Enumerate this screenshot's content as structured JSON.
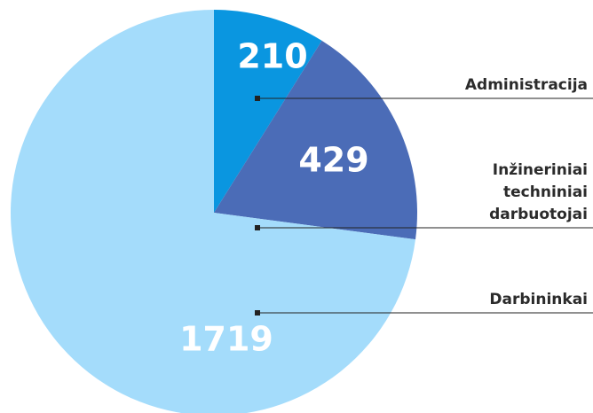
{
  "chart_data": {
    "type": "pie",
    "categories": [
      "Administracija",
      "Inžineriniai techniniai darbuotojai",
      "Darbininkai"
    ],
    "values": [
      210,
      429,
      1719
    ],
    "colors": [
      "#0a96e0",
      "#4b6cb7",
      "#a4dcfb"
    ]
  }
}
